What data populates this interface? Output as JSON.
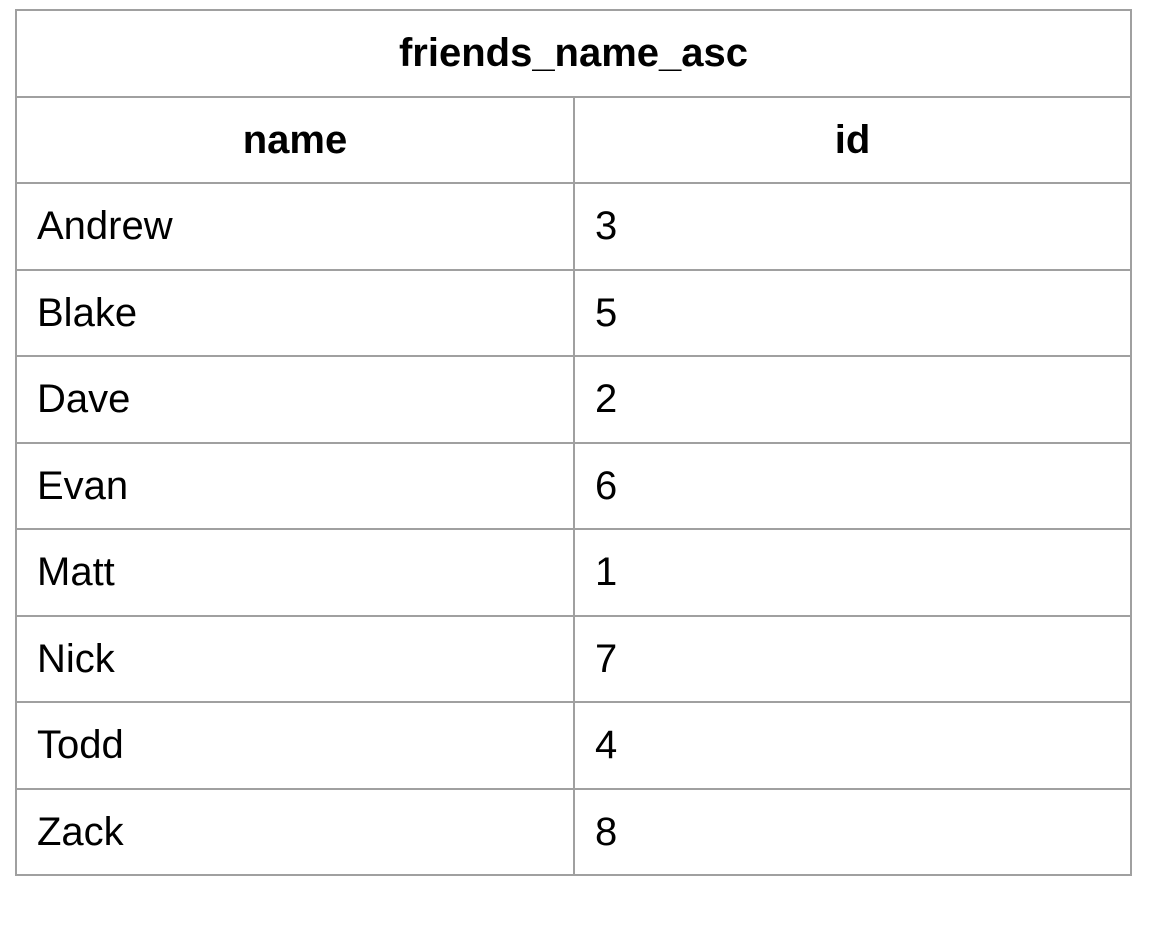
{
  "table": {
    "title": "friends_name_asc",
    "columns": [
      "name",
      "id"
    ],
    "rows": [
      [
        "Andrew",
        "3"
      ],
      [
        "Blake",
        "5"
      ],
      [
        "Dave",
        "2"
      ],
      [
        "Evan",
        "6"
      ],
      [
        "Matt",
        "1"
      ],
      [
        "Nick",
        "7"
      ],
      [
        "Todd",
        "4"
      ],
      [
        "Zack",
        "8"
      ]
    ]
  }
}
